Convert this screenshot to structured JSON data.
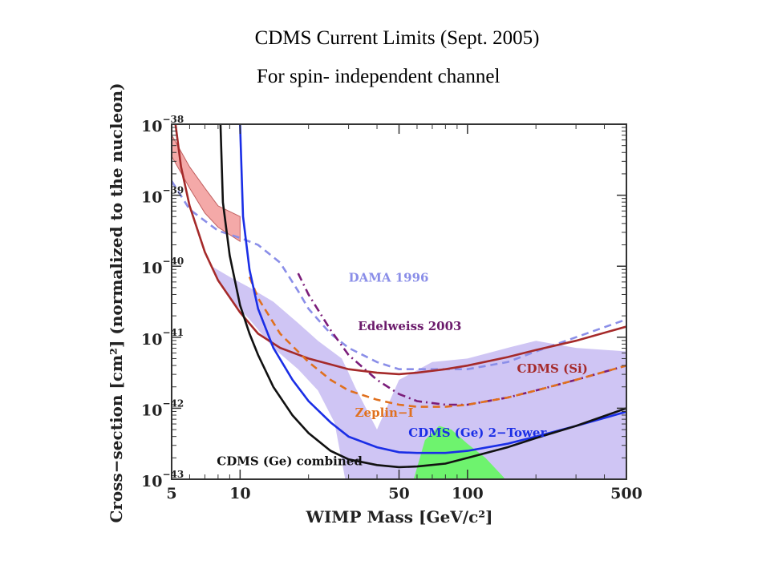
{
  "slide": {
    "title": "CDMS Current Limits (Sept. 2005)",
    "subtitle": "For spin- independent channel"
  },
  "chart_data": {
    "type": "line",
    "xlabel": "WIMP Mass [GeV/c²]",
    "ylabel": "Cross−section [cm²] (normalized to the nucleon)",
    "x_scale": "log",
    "y_scale": "log",
    "xlim": [
      5,
      500
    ],
    "ylim": [
      1e-43,
      1e-38
    ],
    "x_ticks": [
      "5",
      "10",
      "50",
      "100",
      "500"
    ],
    "x_tick_values": [
      5,
      10,
      50,
      100,
      500
    ],
    "y_ticks": [
      {
        "base": "10",
        "exp": "−43",
        "value": -43
      },
      {
        "base": "10",
        "exp": "−42",
        "value": -42
      },
      {
        "base": "10",
        "exp": "−41",
        "value": -41
      },
      {
        "base": "10",
        "exp": "−40",
        "value": -40
      },
      {
        "base": "10",
        "exp": "−39",
        "value": -39
      },
      {
        "base": "10",
        "exp": "−38",
        "value": -38
      }
    ],
    "series": [
      {
        "name": "DAMA 1996",
        "style": "dashed",
        "color": "#8a8ee8",
        "x": [
          5,
          6,
          8,
          10,
          12,
          15,
          18,
          20,
          25,
          30,
          40,
          50,
          70,
          100,
          150,
          200,
          300,
          500
        ],
        "logy": [
          -38.8,
          -39.2,
          -39.5,
          -39.6,
          -39.7,
          -39.95,
          -40.35,
          -40.6,
          -40.95,
          -41.15,
          -41.35,
          -41.45,
          -41.45,
          -41.45,
          -41.35,
          -41.2,
          -41.0,
          -40.75
        ]
      },
      {
        "name": "Edelweiss 2003",
        "style": "dashdot",
        "color": "#7b1d7a",
        "x": [
          18,
          20,
          25,
          30,
          40,
          50,
          60,
          80,
          100,
          150,
          200,
          300,
          500
        ],
        "logy": [
          -40.1,
          -40.4,
          -40.9,
          -41.25,
          -41.6,
          -41.8,
          -41.9,
          -41.95,
          -41.95,
          -41.85,
          -41.75,
          -41.6,
          -41.4
        ]
      },
      {
        "name": "CDMS (Si)",
        "style": "solid",
        "color": "#a52a2a",
        "x": [
          5.2,
          5.5,
          6,
          7,
          8,
          10,
          12,
          15,
          20,
          30,
          40,
          50,
          60,
          80,
          100,
          150,
          200,
          300,
          500
        ],
        "logy": [
          -38.0,
          -38.6,
          -39.15,
          -39.8,
          -40.2,
          -40.65,
          -40.95,
          -41.15,
          -41.3,
          -41.45,
          -41.5,
          -41.52,
          -41.5,
          -41.45,
          -41.4,
          -41.28,
          -41.18,
          -41.05,
          -40.85
        ]
      },
      {
        "name": "Zeplin−I",
        "style": "dashed",
        "color": "#e0701e",
        "x": [
          11,
          12,
          15,
          20,
          25,
          30,
          40,
          50,
          60,
          80,
          100,
          150,
          200,
          300,
          500
        ],
        "logy": [
          -40.15,
          -40.45,
          -40.95,
          -41.35,
          -41.6,
          -41.75,
          -41.88,
          -41.95,
          -41.98,
          -41.98,
          -41.95,
          -41.85,
          -41.75,
          -41.6,
          -41.4
        ]
      },
      {
        "name": "CDMS (Ge) 2−Tower",
        "style": "solid",
        "color": "#1a2ee6",
        "x": [
          10,
          10.3,
          11,
          12,
          14,
          17,
          20,
          25,
          30,
          40,
          50,
          60,
          80,
          100,
          150,
          200,
          300,
          500
        ],
        "logy": [
          -38.0,
          -39.3,
          -40.05,
          -40.6,
          -41.15,
          -41.6,
          -41.9,
          -42.2,
          -42.4,
          -42.55,
          -42.62,
          -42.63,
          -42.63,
          -42.6,
          -42.5,
          -42.4,
          -42.25,
          -42.05
        ]
      },
      {
        "name": "CDMS (Ge) combined",
        "style": "solid",
        "color": "#111111",
        "x": [
          8.2,
          8.4,
          9,
          10,
          11,
          12,
          14,
          17,
          20,
          25,
          30,
          40,
          50,
          60,
          80,
          100,
          150,
          200,
          300,
          500
        ],
        "logy": [
          -38.0,
          -39.1,
          -39.85,
          -40.55,
          -40.95,
          -41.25,
          -41.7,
          -42.1,
          -42.35,
          -42.6,
          -42.72,
          -42.8,
          -42.83,
          -42.82,
          -42.78,
          -42.7,
          -42.55,
          -42.42,
          -42.25,
          -42.0
        ]
      }
    ],
    "regions": [
      {
        "name": "DAMA band",
        "color": "#f4a9a8",
        "stroke": "#c06060",
        "x": [
          5,
          6,
          7,
          8,
          10,
          10,
          8,
          7,
          6,
          5
        ],
        "logy": [
          -38.15,
          -38.6,
          -38.9,
          -39.15,
          -39.3,
          -39.65,
          -39.45,
          -39.25,
          -38.9,
          -38.45
        ]
      },
      {
        "name": "DAMA + Ge region",
        "color": "#cfc5f4",
        "x": [
          7.5,
          9,
          11,
          14,
          18,
          22,
          28,
          30,
          32,
          40,
          50,
          70,
          100,
          150,
          200,
          300,
          500,
          500,
          300,
          200,
          160,
          150,
          130,
          100,
          80,
          60,
          45,
          35,
          29,
          26,
          22,
          18,
          14,
          11,
          9,
          8
        ],
        "logy": [
          -40.0,
          -40.15,
          -40.3,
          -40.5,
          -40.8,
          -41.05,
          -41.3,
          -41.5,
          -41.7,
          -42.3,
          -41.6,
          -41.35,
          -41.3,
          -41.15,
          -41.05,
          -41.15,
          -41.2,
          -43.0,
          -43.0,
          -43.0,
          -43.0,
          -43.0,
          -43.0,
          -43.0,
          -43.0,
          -43.0,
          -43.0,
          -43.0,
          -43.0,
          -42.2,
          -41.75,
          -41.45,
          -41.15,
          -40.75,
          -40.45,
          -40.2
        ]
      },
      {
        "name": "green region",
        "color": "#6ef36e",
        "x": [
          58,
          65,
          75,
          85,
          100,
          120,
          145,
          145,
          120,
          100,
          80,
          65,
          58
        ],
        "logy": [
          -43.0,
          -42.45,
          -42.25,
          -42.3,
          -42.5,
          -42.7,
          -42.98,
          -43.0,
          -43.0,
          -43.0,
          -43.0,
          -43.0,
          -43.0
        ]
      }
    ],
    "labels": [
      {
        "text": "DAMA 1996",
        "color": "#8a8ee8",
        "x": 30,
        "logy": -40.22
      },
      {
        "text": "Edelweiss 2003",
        "color": "#6b1a6b",
        "x": 33,
        "logy": -40.9
      },
      {
        "text": "CDMS (Si)",
        "color": "#a52a2a",
        "x": 165,
        "logy": -41.5
      },
      {
        "text": "Zeplin−I",
        "color": "#e0701e",
        "x": 32,
        "logy": -42.12
      },
      {
        "text": "CDMS (Ge) 2−Tower",
        "color": "#1a2ee6",
        "x": 55,
        "logy": -42.4
      },
      {
        "text": "CDMS (Ge) combined",
        "color": "#111111",
        "x": 7.9,
        "logy": -42.8
      }
    ]
  }
}
